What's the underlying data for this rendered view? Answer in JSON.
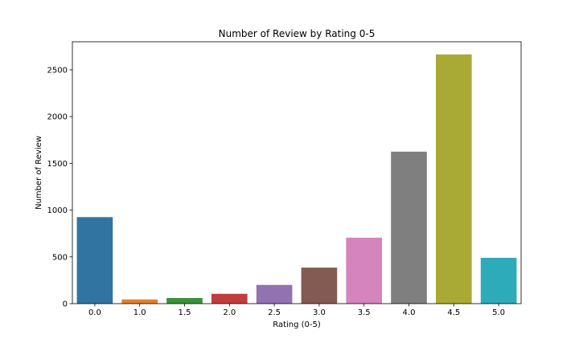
{
  "chart_data": {
    "type": "bar",
    "title": "Number of Review by Rating 0-5",
    "xlabel": "Rating (0-5)",
    "ylabel": "Number of Review",
    "categories": [
      "0.0",
      "1.0",
      "1.5",
      "2.0",
      "2.5",
      "3.0",
      "3.5",
      "4.0",
      "4.5",
      "5.0"
    ],
    "values": [
      925,
      45,
      60,
      105,
      200,
      385,
      705,
      1625,
      2665,
      490
    ],
    "colors": [
      "#3274a1",
      "#e1812c",
      "#3a923a",
      "#c03d3e",
      "#9372b2",
      "#845b53",
      "#d684bd",
      "#7f7f7f",
      "#a9aa35",
      "#2eabb8"
    ],
    "ylim": [
      0,
      2800
    ],
    "yticks": [
      0,
      500,
      1000,
      1500,
      2000,
      2500
    ],
    "ytick_labels": [
      "0",
      "500",
      "1000",
      "1500",
      "2000",
      "2500"
    ],
    "grid": false,
    "legend": "none"
  }
}
